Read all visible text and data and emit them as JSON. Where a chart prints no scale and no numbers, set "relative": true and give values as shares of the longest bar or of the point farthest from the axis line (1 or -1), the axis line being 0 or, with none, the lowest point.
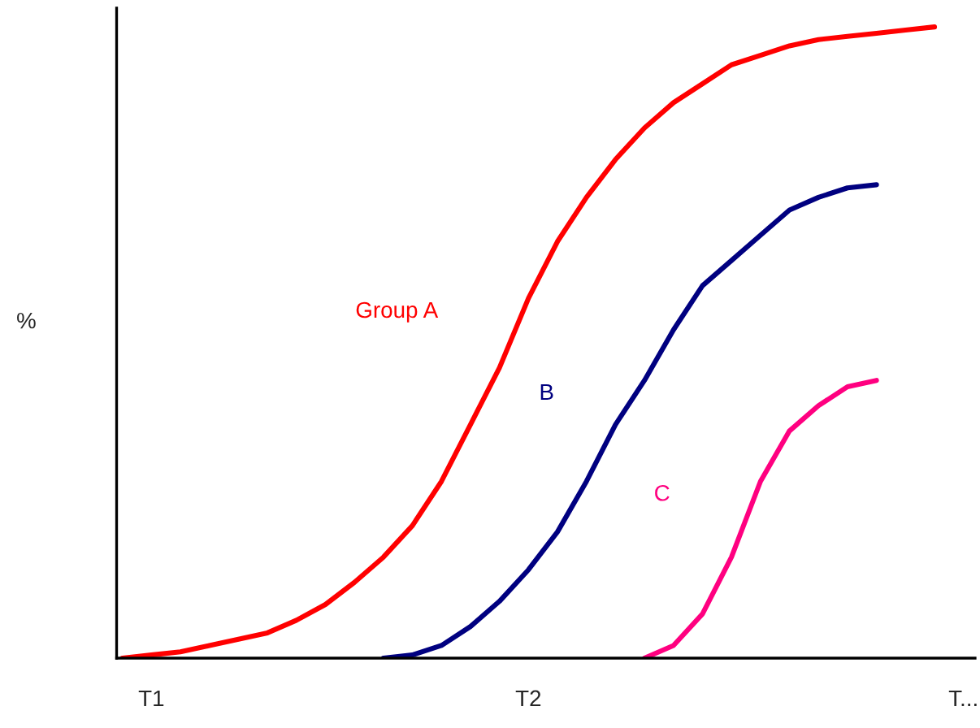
{
  "chart_data": {
    "type": "line",
    "relative": true,
    "ylabel": "%",
    "categories": [
      null,
      "T1",
      null,
      null,
      null,
      null,
      null,
      null,
      null,
      null,
      null,
      null,
      null,
      null,
      "T2",
      null,
      null,
      null,
      null,
      null,
      null,
      null,
      null,
      null,
      null,
      null,
      null,
      null,
      null,
      "T..."
    ],
    "grid": false,
    "legend": false,
    "marker": "none",
    "line_style": "solid",
    "series": [
      {
        "name": "Group A",
        "color": "#ff0000",
        "values": [
          0,
          0.005,
          0.01,
          0.02,
          0.03,
          0.04,
          0.06,
          0.085,
          0.12,
          0.16,
          0.21,
          0.28,
          0.37,
          0.46,
          0.57,
          0.66,
          0.73,
          0.79,
          0.84,
          0.88,
          0.91,
          0.94,
          0.955,
          0.97,
          0.98,
          0.985,
          0.99,
          0.995,
          1,
          null
        ]
      },
      {
        "name": "B",
        "color": "#000080",
        "values": [
          null,
          null,
          null,
          null,
          null,
          null,
          null,
          null,
          null,
          0,
          0.005,
          0.02,
          0.05,
          0.09,
          0.14,
          0.2,
          0.28,
          0.37,
          0.44,
          0.52,
          0.59,
          0.63,
          0.67,
          0.71,
          0.73,
          0.745,
          0.75,
          null,
          null,
          null
        ]
      },
      {
        "name": "C",
        "color": "#ff0080",
        "values": [
          null,
          null,
          null,
          null,
          null,
          null,
          null,
          null,
          null,
          null,
          null,
          null,
          null,
          null,
          null,
          null,
          null,
          null,
          0,
          0.02,
          0.07,
          0.16,
          0.28,
          0.36,
          0.4,
          0.43,
          0.44,
          null,
          null,
          null
        ]
      }
    ]
  }
}
